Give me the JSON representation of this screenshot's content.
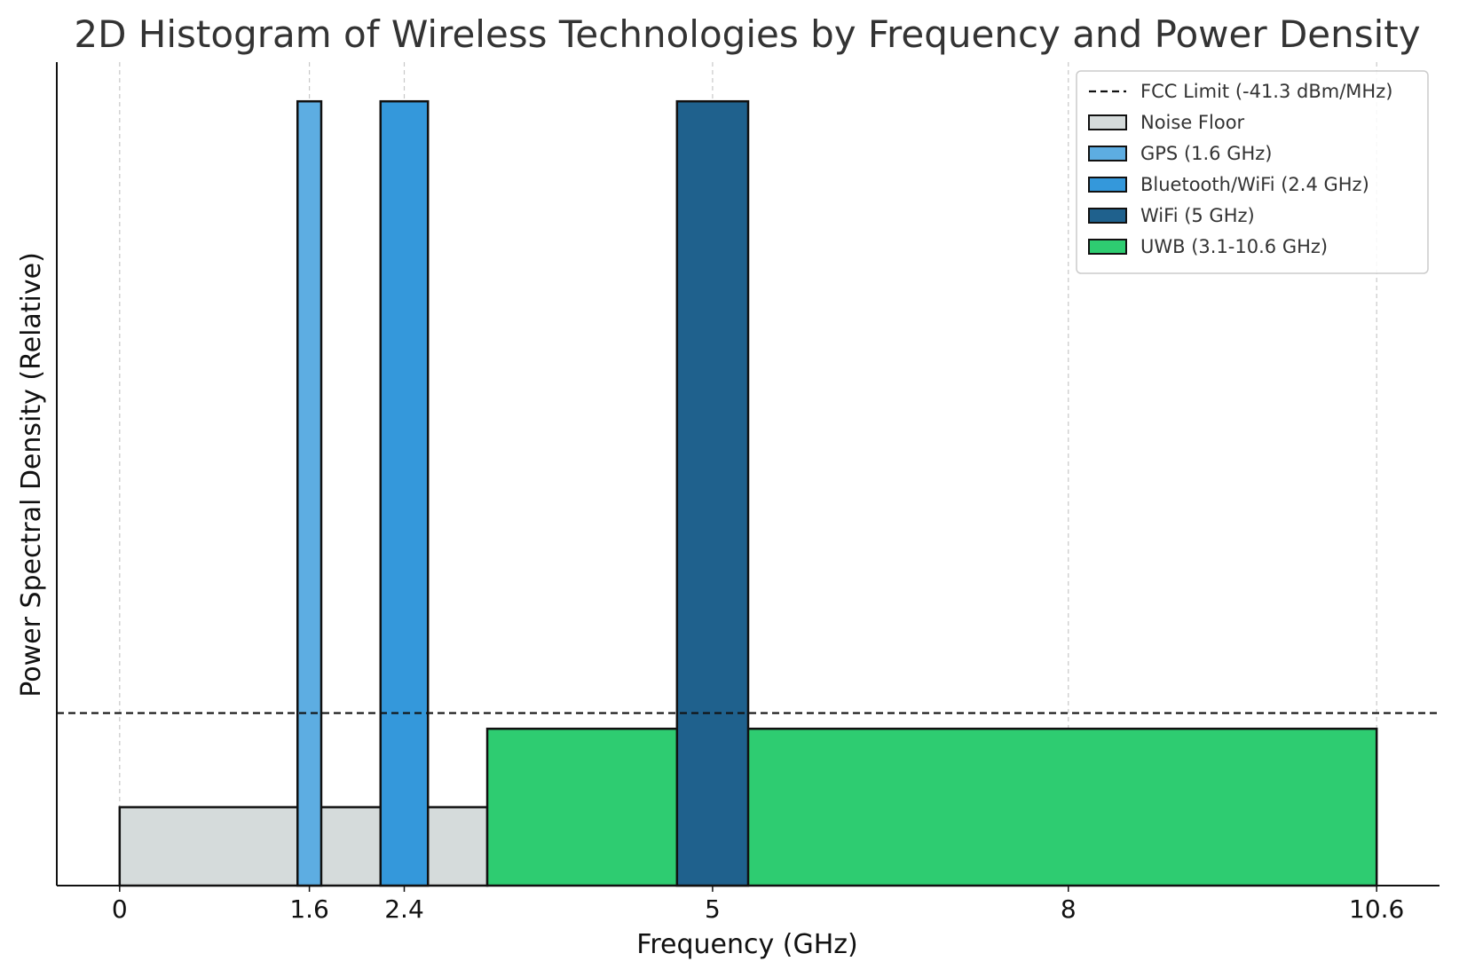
{
  "chart_data": {
    "type": "bar",
    "title": "2D Histogram of Wireless Technologies by Frequency and Power Density",
    "xlabel": "Frequency (GHz)",
    "ylabel": "Power Spectral Density (Relative)",
    "xlim": [
      -0.53,
      11.13
    ],
    "ylim": [
      0,
      10.5
    ],
    "xticks": [
      {
        "value": 0,
        "label": "0"
      },
      {
        "value": 1.6,
        "label": "1.6"
      },
      {
        "value": 2.4,
        "label": "2.4"
      },
      {
        "value": 5,
        "label": "5"
      },
      {
        "value": 8,
        "label": "8"
      },
      {
        "value": 10.6,
        "label": "10.6"
      }
    ],
    "grid": "x-only, dashed",
    "legend_position": "top-right",
    "hline": {
      "name": "FCC Limit (-41.3 dBm/MHz)",
      "y": 2.2,
      "style": "dashed",
      "color": "#111111"
    },
    "series": [
      {
        "name": "Noise Floor",
        "color": "#d5dbdb",
        "bars": [
          {
            "x0": 0,
            "x1": 3.1,
            "y": 1
          }
        ]
      },
      {
        "name": "UWB (3.1-10.6 GHz)",
        "color": "#2ecc71",
        "bars": [
          {
            "x0": 3.1,
            "x1": 10.6,
            "y": 2
          }
        ]
      },
      {
        "name": "GPS (1.6 GHz)",
        "color": "#5dade2",
        "bars": [
          {
            "x0": 1.5,
            "x1": 1.7,
            "y": 10
          }
        ]
      },
      {
        "name": "Bluetooth/WiFi (2.4 GHz)",
        "color": "#3498db",
        "bars": [
          {
            "x0": 2.2,
            "x1": 2.6,
            "y": 10
          }
        ]
      },
      {
        "name": "WiFi (5 GHz)",
        "color": "#1f618d",
        "bars": [
          {
            "x0": 4.7,
            "x1": 5.3,
            "y": 10
          }
        ]
      }
    ],
    "legend_order": [
      "FCC Limit (-41.3 dBm/MHz)",
      "Noise Floor",
      "GPS (1.6 GHz)",
      "Bluetooth/WiFi (2.4 GHz)",
      "WiFi (5 GHz)",
      "UWB (3.1-10.6 GHz)"
    ]
  }
}
